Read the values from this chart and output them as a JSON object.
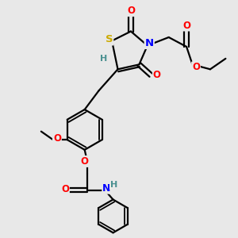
{
  "bg_color": "#e8e8e8",
  "atom_colors": {
    "S": "#ccaa00",
    "N": "#0000ff",
    "O": "#ff0000",
    "C": "#000000",
    "H": "#4a9090"
  },
  "bond_color": "#000000",
  "bond_width": 1.6,
  "font_size_atom": 8.5
}
